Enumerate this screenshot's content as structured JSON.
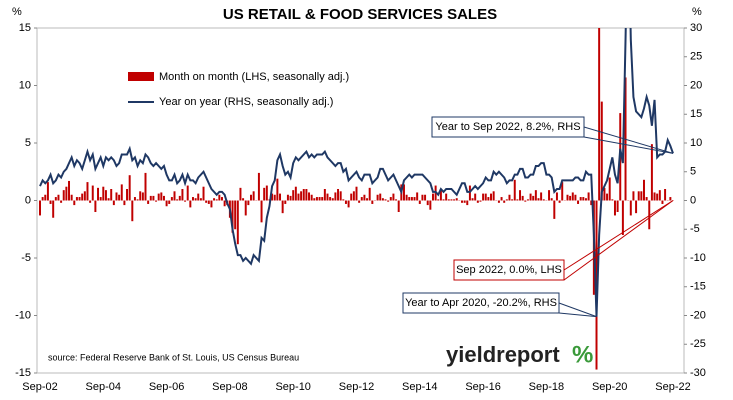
{
  "chart_data": {
    "type": "bar_line",
    "title": "US RETAIL & FOOD SERVICES SALES",
    "y_unit_label": "%",
    "y2_unit_label": "%",
    "source": "source: Federal Reserve Bank of St. Louis, US Census Bureau",
    "logo": "yieldreport",
    "logo_mark": "%",
    "annotations": [
      {
        "text": "Year to Sep 2022, 8.2%, RHS"
      },
      {
        "text": "Sep 2022, 0.0%, LHS"
      },
      {
        "text": "Year to Apr 2020, -20.2%, RHS"
      }
    ],
    "ylim": [
      -15,
      15
    ],
    "yticks": [
      -15,
      -10,
      -5,
      0,
      5,
      10,
      15
    ],
    "y2lim": [
      -30,
      30
    ],
    "y2ticks": [
      -30,
      -25,
      -20,
      -15,
      -10,
      -5,
      0,
      5,
      10,
      15,
      20,
      25,
      30
    ],
    "categories": [
      "Sep-02",
      null,
      null,
      null,
      null,
      null,
      null,
      null,
      null,
      null,
      null,
      null,
      null,
      null,
      null,
      null,
      null,
      null,
      null,
      null,
      null,
      null,
      null,
      null,
      "Sep-04",
      null,
      null,
      null,
      null,
      null,
      null,
      null,
      null,
      null,
      null,
      null,
      null,
      null,
      null,
      null,
      null,
      null,
      null,
      null,
      null,
      null,
      null,
      null,
      "Sep-06",
      null,
      null,
      null,
      null,
      null,
      null,
      null,
      null,
      null,
      null,
      null,
      null,
      null,
      null,
      null,
      null,
      null,
      null,
      null,
      null,
      null,
      null,
      null,
      "Sep-08",
      null,
      null,
      null,
      null,
      null,
      null,
      null,
      null,
      null,
      null,
      null,
      null,
      null,
      null,
      null,
      null,
      null,
      null,
      null,
      null,
      null,
      null,
      null,
      "Sep-10",
      null,
      null,
      null,
      null,
      null,
      null,
      null,
      null,
      null,
      null,
      null,
      null,
      null,
      null,
      null,
      null,
      null,
      null,
      null,
      null,
      null,
      null,
      null,
      "Sep-12",
      null,
      null,
      null,
      null,
      null,
      null,
      null,
      null,
      null,
      null,
      null,
      null,
      null,
      null,
      null,
      null,
      null,
      null,
      null,
      null,
      null,
      null,
      null,
      "Sep-14",
      null,
      null,
      null,
      null,
      null,
      null,
      null,
      null,
      null,
      null,
      null,
      null,
      null,
      null,
      null,
      null,
      null,
      null,
      null,
      null,
      null,
      null,
      null,
      "Sep-16",
      null,
      null,
      null,
      null,
      null,
      null,
      null,
      null,
      null,
      null,
      null,
      null,
      null,
      null,
      null,
      null,
      null,
      null,
      null,
      null,
      null,
      null,
      null,
      "Sep-18",
      null,
      null,
      null,
      null,
      null,
      null,
      null,
      null,
      null,
      null,
      null,
      null,
      null,
      null,
      null,
      null,
      null,
      null,
      null,
      null,
      null,
      null,
      null,
      "Sep-20",
      null,
      null,
      null,
      null,
      null,
      null,
      null,
      null,
      null,
      null,
      null,
      null,
      null,
      null,
      null,
      null,
      null,
      null,
      null,
      null,
      null,
      null,
      null,
      "Sep-22"
    ],
    "series": [
      {
        "name": "Month on month (LHS, seasonally adj.)",
        "type": "bar",
        "color": "#c00000",
        "values": [
          -1.3,
          0.3,
          0.5,
          1.6,
          -0.3,
          -1.5,
          0.3,
          0.5,
          -0.2,
          0.9,
          1.2,
          1.7,
          0.5,
          -0.4,
          0.3,
          0.3,
          0.6,
          0.8,
          1.6,
          -0.2,
          1.3,
          -1.0,
          1.1,
          0.3,
          1.2,
          0.9,
          0.2,
          1.0,
          -0.4,
          0.7,
          0.5,
          1.4,
          -0.4,
          1.0,
          2.2,
          -1.8,
          0.3,
          0.1,
          0.8,
          0.7,
          2.4,
          -0.3,
          0.4,
          0.4,
          -0.1,
          0.6,
          0.7,
          0.4,
          -0.5,
          -0.3,
          0.3,
          0.8,
          0.1,
          0.4,
          1.0,
          -0.1,
          1.3,
          -0.6,
          0.3,
          0.2,
          0.6,
          0.2,
          1.2,
          -0.2,
          -0.3,
          -0.6,
          0.2,
          0.1,
          0.5,
          0.3,
          -0.5,
          -0.4,
          -1.5,
          -2.8,
          -2.5,
          -3.8,
          1.1,
          0.2,
          -1.3,
          -0.4,
          0.5,
          0.8,
          0.0,
          2.4,
          -1.9,
          1.1,
          1.3,
          0.1,
          0.6,
          0.5,
          1.9,
          0.6,
          -1.1,
          -0.3,
          0.5,
          0.4,
          0.9,
          1.2,
          0.6,
          0.8,
          1.0,
          1.0,
          0.7,
          0.5,
          0.2,
          0.3,
          0.3,
          0.3,
          1.0,
          0.6,
          0.3,
          0.2,
          0.7,
          1.0,
          0.8,
          0.1,
          -0.3,
          -0.6,
          0.6,
          0.8,
          1.2,
          -0.2,
          0.3,
          0.5,
          0.2,
          1.1,
          -0.3,
          0.0,
          0.5,
          0.6,
          0.2,
          0.1,
          -0.1,
          0.3,
          0.6,
          0.1,
          -1.0,
          1.4,
          1.4,
          0.5,
          0.3,
          0.3,
          0.3,
          0.7,
          -0.3,
          0.5,
          0.5,
          -0.4,
          -0.8,
          0.6,
          1.3,
          0.1,
          1.0,
          0.1,
          0.6,
          0.1,
          0.1,
          0.1,
          0.2,
          0.0,
          -0.2,
          -0.2,
          -0.4,
          1.3,
          0.2,
          0.6,
          -0.2,
          -0.1,
          0.6,
          0.6,
          0.3,
          0.6,
          0.8,
          0.0,
          -0.2,
          0.3,
          -0.2,
          0.1,
          0.5,
          0.1,
          1.8,
          0.1,
          0.9,
          0.4,
          -0.1,
          0.1,
          0.6,
          0.4,
          0.9,
          0.2,
          0.7,
          0.1,
          0.0,
          0.9,
          0.2,
          -1.6,
          0.7,
          -0.2,
          1.6,
          0.0,
          0.5,
          0.4,
          0.7,
          0.5,
          -0.3,
          0.3,
          0.3,
          0.2,
          0.7,
          -0.4,
          -8.2,
          -14.7,
          18.3,
          8.6,
          1.1,
          0.6,
          2.0,
          0.1,
          -1.3,
          -1.0,
          7.6,
          -3.0,
          10.7,
          0.0,
          -1.3,
          0.8,
          -1.1,
          0.8,
          0.8,
          1.8,
          0.3,
          -2.5,
          4.9,
          0.7,
          0.6,
          0.9,
          -0.3,
          1.0,
          0.0,
          0.3,
          0.0
        ]
      },
      {
        "name": "Year on year (RHS, seasonally adj.)",
        "type": "line",
        "axis": "y2",
        "color": "#1f3864",
        "values": [
          2.5,
          3.5,
          3.0,
          3.5,
          4.5,
          3.0,
          3.5,
          4.5,
          4.0,
          5.0,
          5.5,
          6.5,
          7.5,
          6.0,
          7.0,
          6.5,
          5.5,
          7.0,
          8.5,
          7.0,
          8.0,
          5.5,
          6.5,
          7.5,
          6.0,
          7.5,
          7.0,
          7.5,
          7.0,
          6.0,
          6.5,
          8.0,
          8.0,
          8.0,
          9.0,
          7.0,
          7.5,
          6.0,
          7.0,
          6.5,
          8.0,
          7.5,
          6.5,
          6.0,
          6.5,
          6.0,
          5.5,
          6.0,
          4.5,
          3.5,
          3.5,
          4.5,
          3.0,
          3.5,
          4.5,
          3.0,
          4.5,
          3.5,
          3.5,
          3.0,
          4.0,
          4.5,
          5.0,
          4.0,
          3.0,
          2.0,
          1.5,
          1.0,
          1.5,
          1.5,
          1.0,
          -0.5,
          -1.5,
          -5.0,
          -7.5,
          -9.5,
          -9.5,
          -10.5,
          -10.0,
          -10.5,
          -11.0,
          -9.5,
          -10.0,
          -10.5,
          -6.5,
          -7.0,
          -3.0,
          -1.0,
          2.5,
          3.5,
          7.0,
          8.0,
          6.0,
          4.5,
          5.0,
          4.0,
          6.5,
          7.5,
          7.0,
          7.5,
          8.0,
          8.5,
          7.5,
          8.0,
          7.5,
          8.0,
          8.0,
          8.0,
          8.5,
          7.5,
          7.0,
          6.5,
          6.0,
          6.5,
          6.5,
          5.0,
          5.5,
          3.5,
          4.0,
          4.5,
          5.0,
          4.0,
          3.5,
          4.5,
          4.5,
          4.5,
          3.0,
          3.5,
          4.0,
          5.5,
          5.5,
          4.5,
          3.5,
          4.0,
          4.5,
          3.5,
          2.5,
          1.5,
          3.5,
          4.0,
          4.5,
          4.0,
          4.5,
          4.5,
          4.5,
          4.5,
          4.0,
          3.5,
          3.0,
          1.5,
          1.5,
          1.0,
          2.0,
          1.5,
          2.0,
          2.0,
          2.0,
          1.5,
          1.0,
          2.0,
          3.0,
          3.0,
          1.5,
          1.5,
          2.0,
          2.5,
          2.0,
          2.5,
          3.0,
          4.0,
          3.5,
          3.5,
          5.0,
          4.5,
          5.0,
          4.5,
          4.0,
          3.0,
          3.5,
          3.5,
          4.5,
          4.5,
          5.5,
          5.5,
          4.0,
          4.0,
          4.5,
          4.5,
          6.0,
          6.0,
          6.5,
          6.5,
          4.5,
          4.5,
          4.0,
          1.5,
          2.0,
          2.0,
          3.5,
          3.5,
          3.5,
          3.5,
          3.5,
          4.0,
          4.0,
          3.5,
          3.5,
          5.0,
          4.5,
          4.5,
          -6.0,
          -20.2,
          -6.0,
          1.5,
          2.5,
          3.5,
          5.5,
          7.5,
          4.5,
          3.0,
          9.0,
          6.5,
          28.0,
          52.0,
          28.0,
          18.0,
          15.5,
          15.0,
          14.5,
          16.0,
          18.0,
          16.5,
          13.0,
          17.5,
          7.5,
          8.0,
          8.0,
          8.5,
          10.5,
          9.5,
          8.2
        ]
      }
    ]
  }
}
